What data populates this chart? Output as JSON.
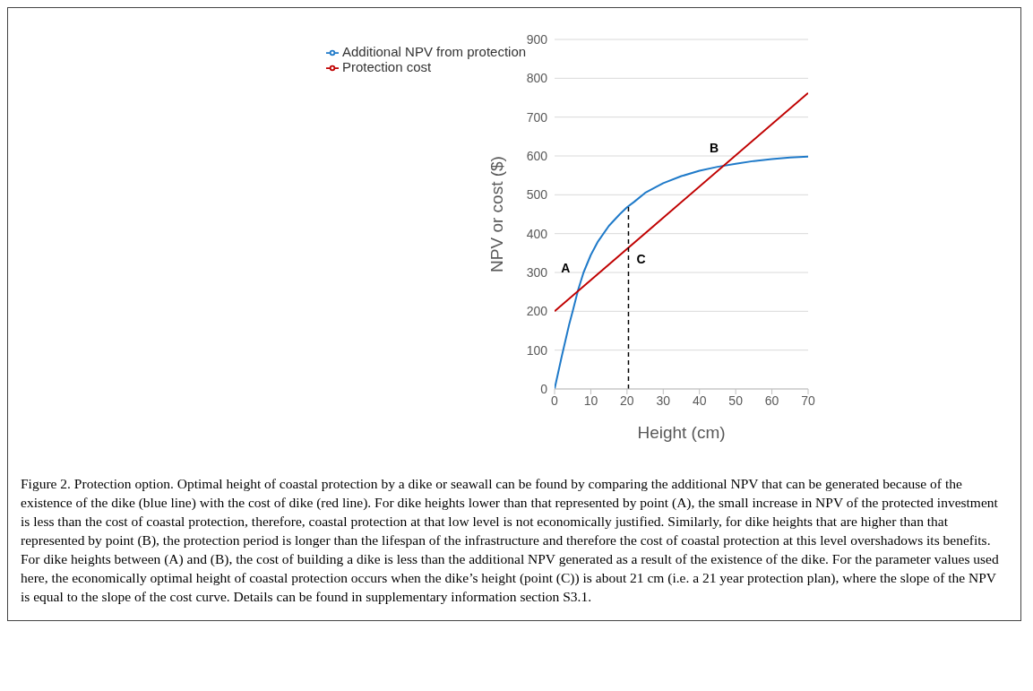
{
  "chart_data": {
    "type": "line",
    "xlabel": "Height (cm)",
    "ylabel": "NPV or cost ($)",
    "xlim": [
      0,
      70
    ],
    "xticks": [
      0,
      10,
      20,
      30,
      40,
      50,
      60,
      70
    ],
    "ylim": [
      0,
      900
    ],
    "yticks": [
      0,
      100,
      200,
      300,
      400,
      500,
      600,
      700,
      800,
      900
    ],
    "grid": "y",
    "legend": "top left",
    "marker": "none",
    "series": [
      {
        "name": "Additional NPV from protection",
        "color": "#1f7ac9",
        "x": [
          0,
          2,
          4,
          5,
          6.5,
          8,
          10,
          12,
          15,
          18,
          20,
          22,
          25,
          28,
          30,
          35,
          40,
          45,
          50,
          55,
          60,
          65,
          70
        ],
        "values": [
          0,
          85,
          165,
          200,
          255,
          300,
          345,
          380,
          420,
          450,
          468,
          482,
          505,
          520,
          530,
          548,
          562,
          572,
          580,
          587,
          592,
          596,
          598
        ]
      },
      {
        "name": "Protection cost",
        "color": "#c00000",
        "x": [
          0,
          70
        ],
        "values": [
          200,
          762
        ]
      },
      {
        "type": "line",
        "color": "#000000",
        "line_style": "dashed",
        "x": [
          20.4,
          20.4
        ],
        "values": [
          0,
          470
        ]
      }
    ],
    "annotations": [
      {
        "text": "A",
        "x": 6.5,
        "y": 255
      },
      {
        "text": "B",
        "x": 46.5,
        "y": 573
      },
      {
        "text": "C",
        "x": 20.4,
        "y": 365
      },
      "Figure 2. Protection option. Optimal height of coastal protection by a dike or seawall can be found by comparing the additional NPV that can be generated because of the existence of the dike (blue line) with the cost of dike (red line). For dike heights lower than that represented by point (A), the small increase in NPV of the protected investment is less than the cost of coastal protection, therefore, coastal protection at that low level is not economically justified. Similarly, for dike heights that are higher than that represented by point (B), the protection period is longer than the lifespan of the infrastructure and therefore the cost of coastal protection at this level overshadows its benefits. For dike heights between (A) and (B), the cost of building a dike is less than the additional NPV generated as a result of the existence of the dike. For the parameter values used here, the economically optimal height of coastal protection occurs when the dike’s height (point (C)) is about 21 cm (i.e. a 21 year protection plan), where the slope of the NPV is equal to the slope of the cost curve. Details can be found in supplementary information section S3.1."
    ]
  }
}
